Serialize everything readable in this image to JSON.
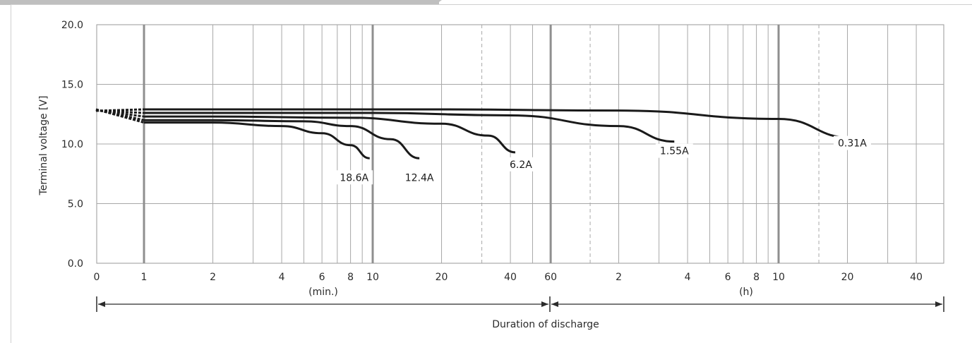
{
  "chart_data": {
    "type": "line",
    "title": "",
    "xlabel": "Duration of discharge",
    "ylabel": "Terminal voltage [V]",
    "ylim": [
      0,
      20
    ],
    "y_ticks": [
      "0.0",
      "5.0",
      "10.0",
      "15.0",
      "20.0"
    ],
    "x_scale": "log",
    "x_unit_min": "(min.)",
    "x_unit_h": "(h)",
    "x_ticks": [
      "0",
      "1",
      "2",
      "4",
      "6",
      "8",
      "10",
      "20",
      "40",
      "60",
      "2",
      "4",
      "6",
      "8",
      "10",
      "20",
      "40"
    ],
    "grid": true,
    "series": [
      {
        "name": "18.6A",
        "x_min": [
          1,
          2,
          4,
          6,
          8,
          9.7
        ],
        "y": [
          11.8,
          11.8,
          11.5,
          10.9,
          9.9,
          8.8
        ]
      },
      {
        "name": "12.4A",
        "x_min": [
          1,
          2,
          5,
          8,
          12,
          16
        ],
        "y": [
          12.0,
          12.0,
          11.9,
          11.5,
          10.4,
          8.8
        ]
      },
      {
        "name": "6.2A",
        "x_min": [
          1,
          2,
          8,
          20,
          32,
          42
        ],
        "y": [
          12.3,
          12.3,
          12.2,
          11.7,
          10.7,
          9.3
        ]
      },
      {
        "name": "1.55A",
        "x_min": [
          1,
          2,
          10,
          40,
          120,
          210
        ],
        "y": [
          12.6,
          12.6,
          12.6,
          12.4,
          11.5,
          10.2
        ]
      },
      {
        "name": "0.31A",
        "x_min": [
          1,
          2,
          20,
          120,
          600,
          1260
        ],
        "y": [
          12.9,
          12.9,
          12.9,
          12.8,
          12.1,
          10.5
        ]
      }
    ]
  }
}
